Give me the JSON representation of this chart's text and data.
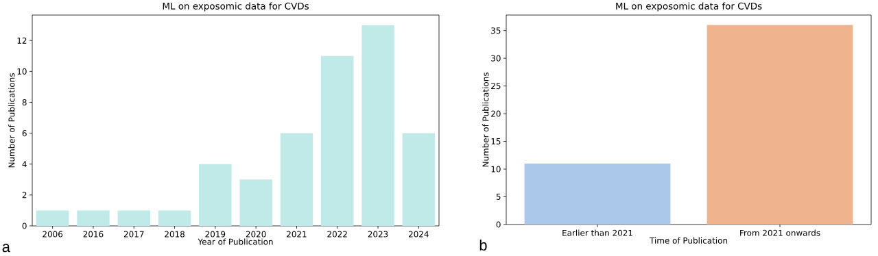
{
  "chart_data": [
    {
      "type": "bar",
      "title": "ML on exposomic data for CVDs",
      "xlabel": "Year of Publication",
      "ylabel": "Number of Publications",
      "categories": [
        "2006",
        "2016",
        "2017",
        "2018",
        "2019",
        "2020",
        "2021",
        "2022",
        "2023",
        "2024"
      ],
      "values": [
        1,
        1,
        1,
        1,
        4,
        3,
        6,
        11,
        13,
        6
      ],
      "color": "#bfeae8",
      "ylim": [
        0,
        13.65
      ],
      "yticks": [
        0,
        2,
        4,
        6,
        8,
        10,
        12
      ],
      "annotations": [
        "a"
      ]
    },
    {
      "type": "bar",
      "title": "ML on exposomic data for CVDs",
      "xlabel": "Time of Publication",
      "ylabel": "Number of Publications",
      "categories": [
        "Earlier than 2021",
        "From 2021 onwards"
      ],
      "values": [
        11,
        36
      ],
      "colors": [
        "#abc8ea",
        "#efb48e"
      ],
      "ylim": [
        0,
        37.8
      ],
      "yticks": [
        0,
        5,
        10,
        15,
        20,
        25,
        30,
        35
      ],
      "annotations": [
        "b"
      ]
    }
  ]
}
